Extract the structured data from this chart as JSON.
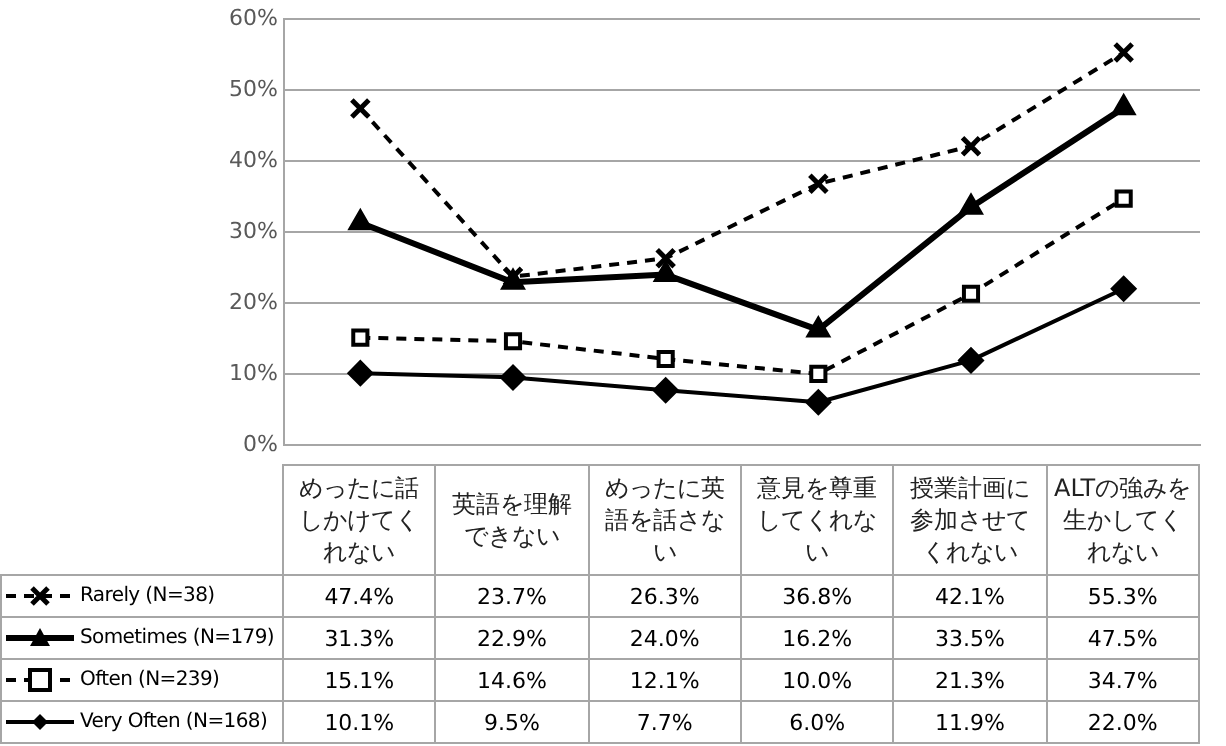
{
  "chart_data": {
    "type": "line",
    "categories": [
      "めったに話しかけてくれない",
      "英語を理解できない",
      "めったに英語を話さない",
      "意見を尊重してくれない",
      "授業計画に参加させてくれない",
      "ALTの強みを生かしてくれない"
    ],
    "series": [
      {
        "name": "Rarely (N=38)",
        "color": "#000000",
        "marker": "cross",
        "line_style": "dashed",
        "values": [
          47.4,
          23.7,
          26.3,
          36.8,
          42.1,
          55.3
        ],
        "value_labels": [
          "47.4%",
          "23.7%",
          "26.3%",
          "36.8%",
          "42.1%",
          "55.3%"
        ]
      },
      {
        "name": "Sometimes (N=179)",
        "color": "#000000",
        "marker": "triangle",
        "line_style": "solid",
        "values": [
          31.3,
          22.9,
          24.0,
          16.2,
          33.5,
          47.5
        ],
        "value_labels": [
          "31.3%",
          "22.9%",
          "24.0%",
          "16.2%",
          "33.5%",
          "47.5%"
        ]
      },
      {
        "name": "Often (N=239)",
        "color": "#000000",
        "marker": "square",
        "line_style": "dashed",
        "values": [
          15.1,
          14.6,
          12.1,
          10.0,
          21.3,
          34.7
        ],
        "value_labels": [
          "15.1%",
          "14.6%",
          "12.1%",
          "10.0%",
          "21.3%",
          "34.7%"
        ]
      },
      {
        "name": "Very Often (N=168)",
        "color": "#000000",
        "marker": "diamond",
        "line_style": "solid",
        "values": [
          10.1,
          9.5,
          7.7,
          6.0,
          11.9,
          22.0
        ],
        "value_labels": [
          "10.1%",
          "9.5%",
          "7.7%",
          "6.0%",
          "11.9%",
          "22.0%"
        ]
      }
    ],
    "ylim": [
      0,
      60
    ],
    "yticks": [
      {
        "value": 0,
        "label": "0%"
      },
      {
        "value": 10,
        "label": "10%"
      },
      {
        "value": 20,
        "label": "20%"
      },
      {
        "value": 30,
        "label": "30%"
      },
      {
        "value": 40,
        "label": "40%"
      },
      {
        "value": 50,
        "label": "50%"
      },
      {
        "value": 60,
        "label": "60%"
      }
    ],
    "grid": "y",
    "legend": "bottom left"
  }
}
